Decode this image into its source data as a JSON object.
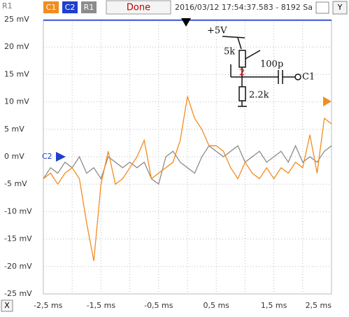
{
  "toolbar": {
    "corner": "R1",
    "c2": "C2",
    "status": "Done",
    "timestamp": "2016/03/12 17:54:37.583 - 8192 Sa",
    "y_button": "Y",
    "x_button": "X"
  },
  "chart_data": {
    "type": "line",
    "x": [
      -2.5,
      -2.375,
      -2.25,
      -2.125,
      -2.0,
      -1.875,
      -1.75,
      -1.625,
      -1.5,
      -1.375,
      -1.25,
      -1.125,
      -1.0,
      -0.875,
      -0.75,
      -0.625,
      -0.5,
      -0.375,
      -0.25,
      -0.125,
      0,
      0.125,
      0.25,
      0.375,
      0.5,
      0.625,
      0.75,
      0.875,
      1.0,
      1.125,
      1.25,
      1.375,
      1.5,
      1.625,
      1.75,
      1.875,
      2.0,
      2.125,
      2.25,
      2.375,
      2.5
    ],
    "series": [
      {
        "name": "C1",
        "color": "#f28c1e",
        "values": [
          -4,
          -3,
          -5,
          -3,
          -2,
          -4,
          -12,
          -19,
          -5,
          1,
          -5,
          -4,
          -2,
          0,
          3,
          -4,
          -3,
          -2,
          -1,
          3,
          11,
          7,
          5,
          2,
          2,
          1,
          -2,
          -4,
          -1,
          -3,
          -4,
          -2,
          -4,
          -2,
          -3,
          -1,
          -2,
          4,
          -3,
          7,
          6
        ]
      },
      {
        "name": "R1",
        "color": "#8c8c8c",
        "values": [
          -4,
          -2,
          -3,
          -1,
          -2,
          0,
          -3,
          -2,
          -4,
          0,
          -1,
          -2,
          -1,
          -2,
          -1,
          -4,
          -5,
          0,
          1,
          -1,
          -2,
          -3,
          0,
          2,
          1,
          0,
          1,
          2,
          -1,
          0,
          1,
          -1,
          0,
          1,
          -1,
          2,
          -1,
          0,
          -1,
          1,
          2
        ]
      }
    ],
    "xlim": [
      -2.5,
      2.5
    ],
    "xticks": [
      {
        "value": -2.5,
        "label": "-2,5 ms"
      },
      {
        "value": -1.5,
        "label": "-1,5 ms"
      },
      {
        "value": -0.5,
        "label": "-0,5 ms"
      },
      {
        "value": 0.5,
        "label": "0,5 ms"
      },
      {
        "value": 1.5,
        "label": "1,5 ms"
      },
      {
        "value": 2.5,
        "label": "2,5 ms"
      }
    ],
    "ylim": [
      -25,
      25
    ],
    "yticks": [
      {
        "value": 25,
        "label": "25 mV"
      },
      {
        "value": 20,
        "label": "20 mV"
      },
      {
        "value": 15,
        "label": "15 mV"
      },
      {
        "value": 10,
        "label": "10 mV"
      },
      {
        "value": 5,
        "label": "5 mV"
      },
      {
        "value": 0,
        "label": "0 mV"
      },
      {
        "value": -5,
        "label": "-5 mV"
      },
      {
        "value": -10,
        "label": "-10 mV"
      },
      {
        "value": -15,
        "label": "-15 mV"
      },
      {
        "value": -20,
        "label": "-20 mV"
      },
      {
        "value": -25,
        "label": "-25 mV"
      }
    ],
    "grid": true,
    "annotations": [
      "+5V",
      "5k",
      "100p",
      "C1",
      "2.2k",
      "2"
    ]
  }
}
